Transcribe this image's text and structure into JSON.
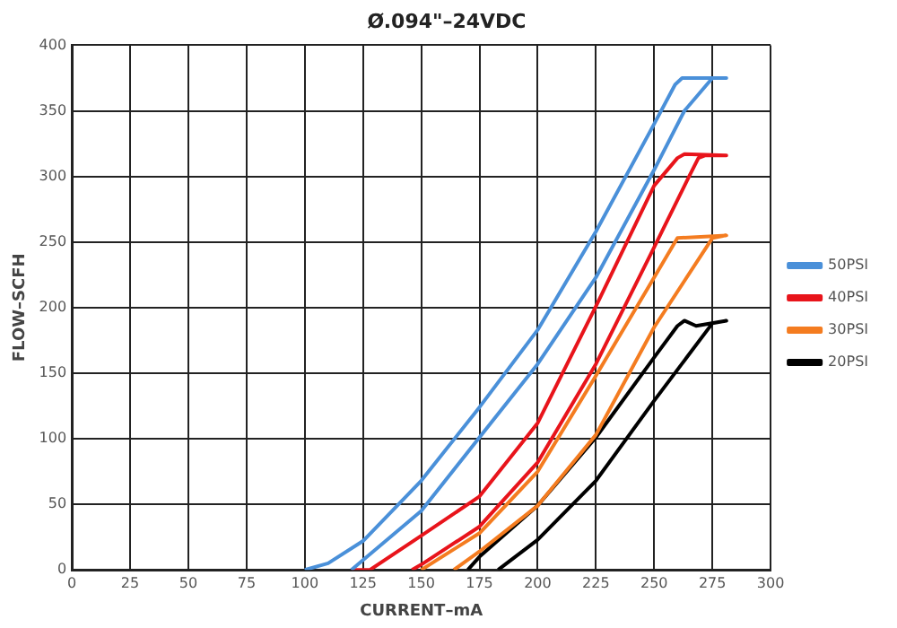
{
  "chart_data": {
    "type": "line",
    "title": "Ø.094\"–24VDC",
    "xlabel": "CURRENT–mA",
    "ylabel": "FLOW–SCFH",
    "xlim": [
      0,
      300
    ],
    "xticks": [
      0,
      25,
      50,
      75,
      100,
      125,
      150,
      175,
      200,
      225,
      250,
      275,
      300
    ],
    "ylim": [
      0,
      400
    ],
    "yticks": [
      0,
      50,
      100,
      150,
      200,
      250,
      300,
      350,
      400
    ],
    "grid": true,
    "legend": "right",
    "marker": "none",
    "line_style": "solid",
    "series": [
      {
        "name": "50PSI",
        "color": "#4a90d9",
        "x": [
          120,
          150,
          175,
          200,
          225,
          250,
          263,
          275,
          281,
          262,
          259,
          250,
          225,
          200,
          175,
          150,
          125,
          110,
          100
        ],
        "values": [
          0,
          45,
          101,
          157,
          223,
          305,
          350,
          375,
          375,
          375,
          370,
          340,
          258,
          183,
          124,
          68,
          22,
          5,
          0
        ]
      },
      {
        "name": "40PSI",
        "color": "#e8141b",
        "x": [
          146,
          150,
          175,
          200,
          225,
          250,
          265,
          269,
          272,
          281,
          263,
          260,
          250,
          225,
          200,
          175,
          150,
          128,
          120
        ],
        "values": [
          0,
          4,
          33,
          82,
          157,
          246,
          300,
          314,
          316,
          316,
          317,
          314,
          293,
          201,
          112,
          56,
          26,
          0,
          0
        ]
      },
      {
        "name": "30PSI",
        "color": "#f47c20",
        "x": [
          164,
          175,
          200,
          225,
          250,
          275,
          281,
          260,
          250,
          225,
          200,
          175,
          150
        ],
        "values": [
          0,
          14,
          49,
          103,
          185,
          253,
          255,
          253,
          223,
          148,
          75,
          28,
          0
        ]
      },
      {
        "name": "20PSI",
        "color": "#000000",
        "x": [
          183,
          200,
          225,
          250,
          275,
          281,
          268,
          263,
          260,
          250,
          225,
          200,
          175,
          170
        ],
        "values": [
          0,
          23,
          68,
          129,
          188,
          190,
          186,
          190,
          186,
          162,
          101,
          49,
          10,
          0
        ]
      }
    ]
  }
}
